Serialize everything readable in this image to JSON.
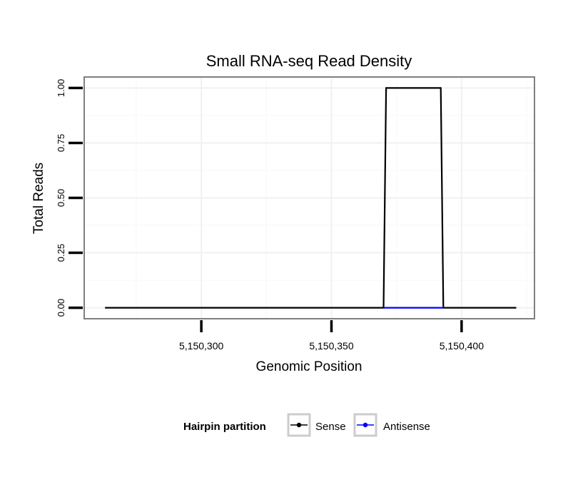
{
  "chart_data": {
    "type": "line",
    "title": "Small RNA-seq Read Density",
    "xlabel": "Genomic Position",
    "ylabel": "Total Reads",
    "xlim": [
      5150255,
      5150428
    ],
    "ylim": [
      -0.05,
      1.05
    ],
    "x_ticks": [
      5150300,
      5150350,
      5150400
    ],
    "x_tick_labels": [
      "5,150,300",
      "5,150,350",
      "5,150,400"
    ],
    "y_ticks": [
      0,
      0.25,
      0.5,
      0.75,
      1.0
    ],
    "y_tick_labels": [
      "0.00",
      "0.25",
      "0.50",
      "0.75",
      "1.00"
    ],
    "grid": true,
    "legend": {
      "title": "Hairpin partition",
      "position": "bottom",
      "entries": [
        {
          "label": "Sense",
          "color": "#000000"
        },
        {
          "label": "Antisense",
          "color": "#0000ff"
        }
      ]
    },
    "series": [
      {
        "name": "Sense",
        "color": "#000000",
        "x": [
          5150263,
          5150370,
          5150371,
          5150392,
          5150393,
          5150421
        ],
        "y": [
          0,
          0,
          1,
          1,
          0,
          0
        ]
      },
      {
        "name": "Antisense",
        "color": "#0000ff",
        "x": [
          5150370,
          5150393
        ],
        "y": [
          0,
          0
        ]
      }
    ]
  }
}
